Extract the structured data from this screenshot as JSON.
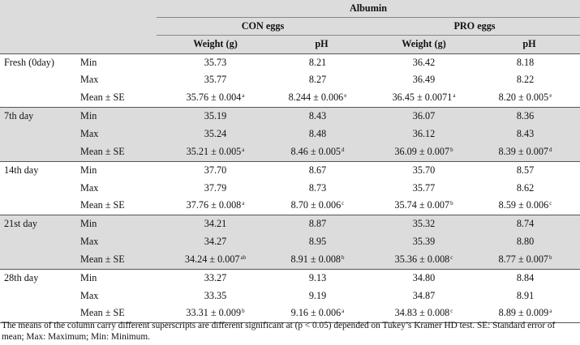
{
  "header": {
    "title": "Albumin",
    "groups": [
      "CON eggs",
      "PRO eggs"
    ],
    "columns": [
      "Weight (g)",
      "pH",
      "Weight (g)",
      "pH"
    ]
  },
  "rows": [
    {
      "day": "Fresh (0day)",
      "stats": [
        {
          "label": "Min",
          "cells": [
            {
              "v": "35.73",
              "s": ""
            },
            {
              "v": "8.21",
              "s": ""
            },
            {
              "v": "36.42",
              "s": ""
            },
            {
              "v": "8.18",
              "s": ""
            }
          ]
        },
        {
          "label": "Max",
          "cells": [
            {
              "v": "35.77",
              "s": ""
            },
            {
              "v": "8.27",
              "s": ""
            },
            {
              "v": "36.49",
              "s": ""
            },
            {
              "v": "8.22",
              "s": ""
            }
          ]
        },
        {
          "label": "Mean ± SE",
          "cells": [
            {
              "v": "35.76 ± 0.004",
              "s": "a"
            },
            {
              "v": "8.244 ± 0.006",
              "s": "e"
            },
            {
              "v": "36.45 ± 0.0071",
              "s": "a"
            },
            {
              "v": "8.20 ± 0.005",
              "s": "e"
            }
          ]
        }
      ]
    },
    {
      "day": "7th day",
      "stats": [
        {
          "label": "Min",
          "cells": [
            {
              "v": "35.19",
              "s": ""
            },
            {
              "v": "8.43",
              "s": ""
            },
            {
              "v": "36.07",
              "s": ""
            },
            {
              "v": "8.36",
              "s": ""
            }
          ]
        },
        {
          "label": "Max",
          "cells": [
            {
              "v": "35.24",
              "s": ""
            },
            {
              "v": "8.48",
              "s": ""
            },
            {
              "v": "36.12",
              "s": ""
            },
            {
              "v": "8.43",
              "s": ""
            }
          ]
        },
        {
          "label": "Mean ± SE",
          "cells": [
            {
              "v": "35.21 ± 0.005",
              "s": "a"
            },
            {
              "v": "8.46 ± 0.005",
              "s": "d"
            },
            {
              "v": "36.09 ± 0.007",
              "s": "b"
            },
            {
              "v": "8.39 ± 0.007",
              "s": "d"
            }
          ]
        }
      ]
    },
    {
      "day": "14th day",
      "stats": [
        {
          "label": "Min",
          "cells": [
            {
              "v": "37.70",
              "s": ""
            },
            {
              "v": "8.67",
              "s": ""
            },
            {
              "v": "35.70",
              "s": ""
            },
            {
              "v": "8.57",
              "s": ""
            }
          ]
        },
        {
          "label": "Max",
          "cells": [
            {
              "v": "37.79",
              "s": ""
            },
            {
              "v": "8.73",
              "s": ""
            },
            {
              "v": "35.77",
              "s": ""
            },
            {
              "v": "8.62",
              "s": ""
            }
          ]
        },
        {
          "label": "Mean ± SE",
          "cells": [
            {
              "v": "37.76 ± 0.008",
              "s": "a"
            },
            {
              "v": "8.70 ± 0.006",
              "s": "c"
            },
            {
              "v": "35.74 ± 0.007",
              "s": "b"
            },
            {
              "v": "8.59 ± 0.006",
              "s": "c"
            }
          ]
        }
      ]
    },
    {
      "day": "21st day",
      "stats": [
        {
          "label": "Min",
          "cells": [
            {
              "v": "34.21",
              "s": ""
            },
            {
              "v": "8.87",
              "s": ""
            },
            {
              "v": "35.32",
              "s": ""
            },
            {
              "v": "8.74",
              "s": ""
            }
          ]
        },
        {
          "label": "Max",
          "cells": [
            {
              "v": "34.27",
              "s": ""
            },
            {
              "v": "8.95",
              "s": ""
            },
            {
              "v": "35.39",
              "s": ""
            },
            {
              "v": "8.80",
              "s": ""
            }
          ]
        },
        {
          "label": "Mean ± SE",
          "cells": [
            {
              "v": "34.24 ± 0.007",
              "s": "ab"
            },
            {
              "v": "8.91 ± 0.008",
              "s": "b"
            },
            {
              "v": "35.36 ± 0.008",
              "s": "c"
            },
            {
              "v": "8.77 ± 0.007",
              "s": "b"
            }
          ]
        }
      ]
    },
    {
      "day": "28th day",
      "stats": [
        {
          "label": "Min",
          "cells": [
            {
              "v": "33.27",
              "s": ""
            },
            {
              "v": "9.13",
              "s": ""
            },
            {
              "v": "34.80",
              "s": ""
            },
            {
              "v": "8.84",
              "s": ""
            }
          ]
        },
        {
          "label": "Max",
          "cells": [
            {
              "v": "33.35",
              "s": ""
            },
            {
              "v": "9.19",
              "s": ""
            },
            {
              "v": "34.87",
              "s": ""
            },
            {
              "v": "8.91",
              "s": ""
            }
          ]
        },
        {
          "label": "Mean ± SE",
          "cells": [
            {
              "v": "33.31 ± 0.009",
              "s": "b"
            },
            {
              "v": "9.16 ± 0.006",
              "s": "a"
            },
            {
              "v": "34.83 ± 0.008",
              "s": "c"
            },
            {
              "v": "8.89 ± 0.009",
              "s": "a"
            }
          ]
        }
      ]
    }
  ],
  "footnote": "The means of the column carry different superscripts are different significant at (p < 0.05) depended on Tukey’s Kramer HD test. SE: Standard error of mean; Max: Maximum; Min: Minimum.",
  "colors": {
    "band": "#dcdcdc",
    "rule": "#555555"
  }
}
